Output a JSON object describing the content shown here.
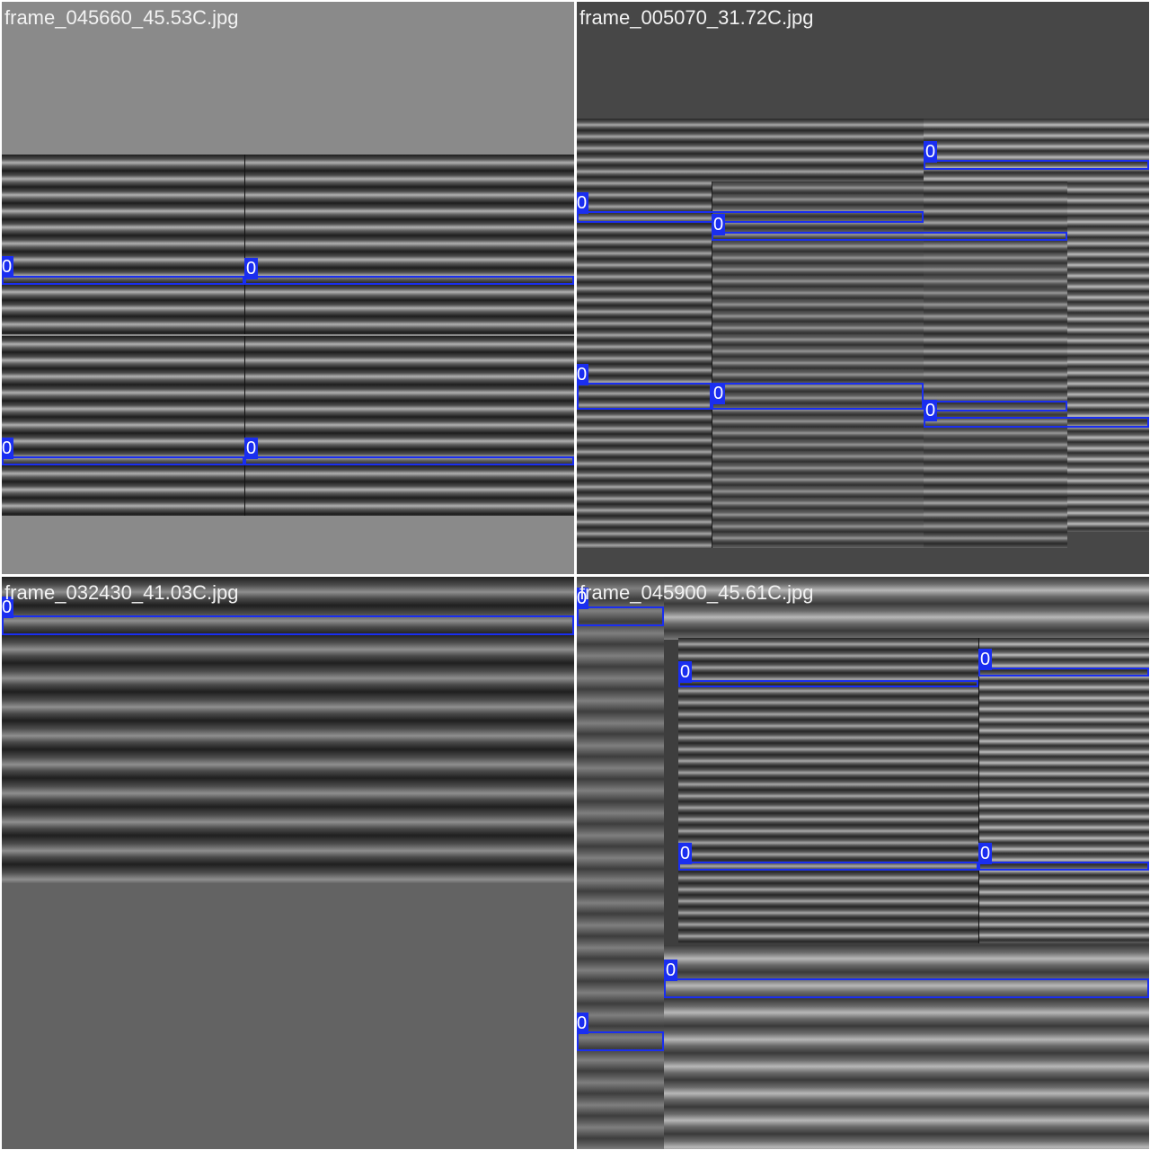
{
  "colors": {
    "box": "#1a2ef0",
    "label_text": "#f2f2f2"
  },
  "mosaic": {
    "q1": {
      "filename": "frame_045660_45.53C.jpg"
    },
    "q2": {
      "filename": "frame_005070_31.72C.jpg"
    },
    "q3": {
      "filename": "frame_032430_41.03C.jpg"
    },
    "q4": {
      "filename": "frame_045900_45.61C.jpg"
    }
  },
  "detection_class": "0"
}
